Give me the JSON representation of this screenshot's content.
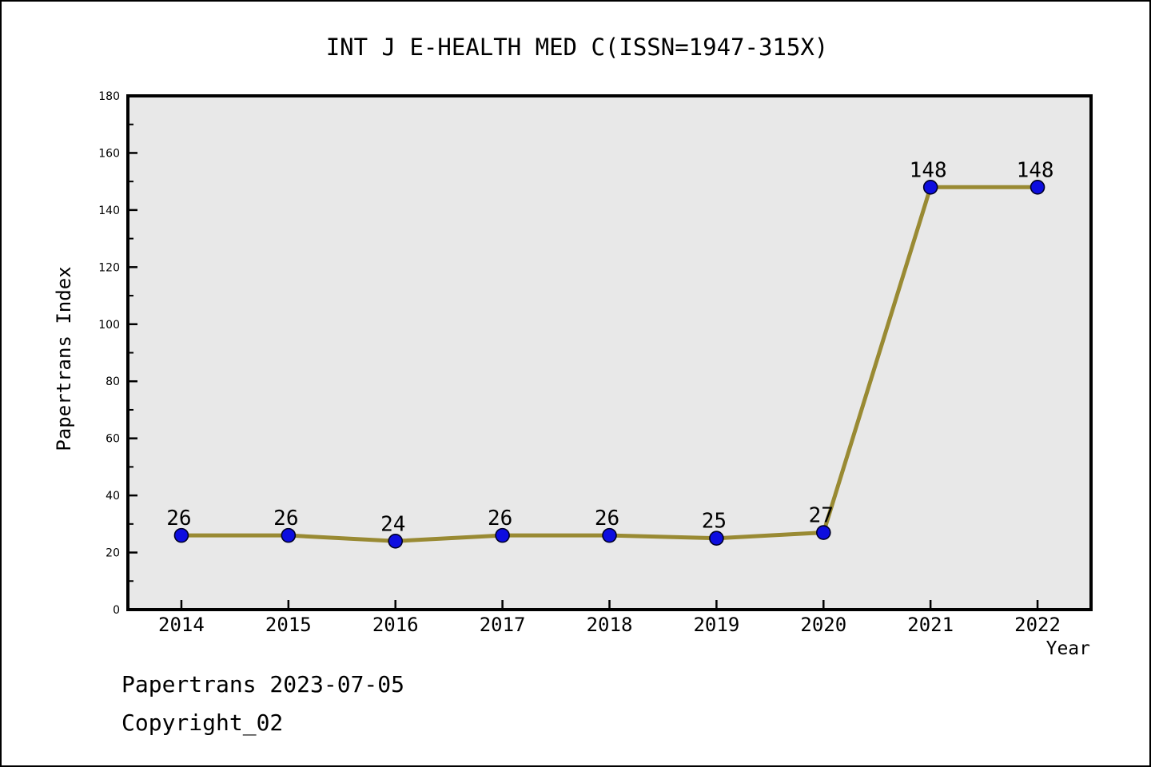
{
  "chart_data": {
    "type": "line",
    "title": "INT J E-HEALTH MED C(ISSN=1947-315X)",
    "xlabel": "Year",
    "ylabel": "Papertrans Index",
    "x": [
      2014,
      2015,
      2016,
      2017,
      2018,
      2019,
      2020,
      2021,
      2022
    ],
    "values": [
      26,
      26,
      24,
      26,
      26,
      25,
      27,
      148,
      148
    ],
    "point_labels": [
      "26",
      "26",
      "24",
      "26",
      "26",
      "25",
      "27",
      "148",
      "148"
    ],
    "xlim": [
      2013.5,
      2022.5
    ],
    "ylim": [
      0,
      180
    ],
    "ytick_major_step": 20,
    "ytick_minor_step": 10,
    "grid": false,
    "legend": "none",
    "colors": {
      "line": "#998A33",
      "marker_fill": "#0D0DE0",
      "marker_edge": "#000028",
      "plot_bg": "#E8E8E8",
      "frame": "#000000",
      "text": "#000000"
    }
  },
  "footer": {
    "line1": "Papertrans 2023-07-05",
    "line2": "Copyright_02"
  }
}
